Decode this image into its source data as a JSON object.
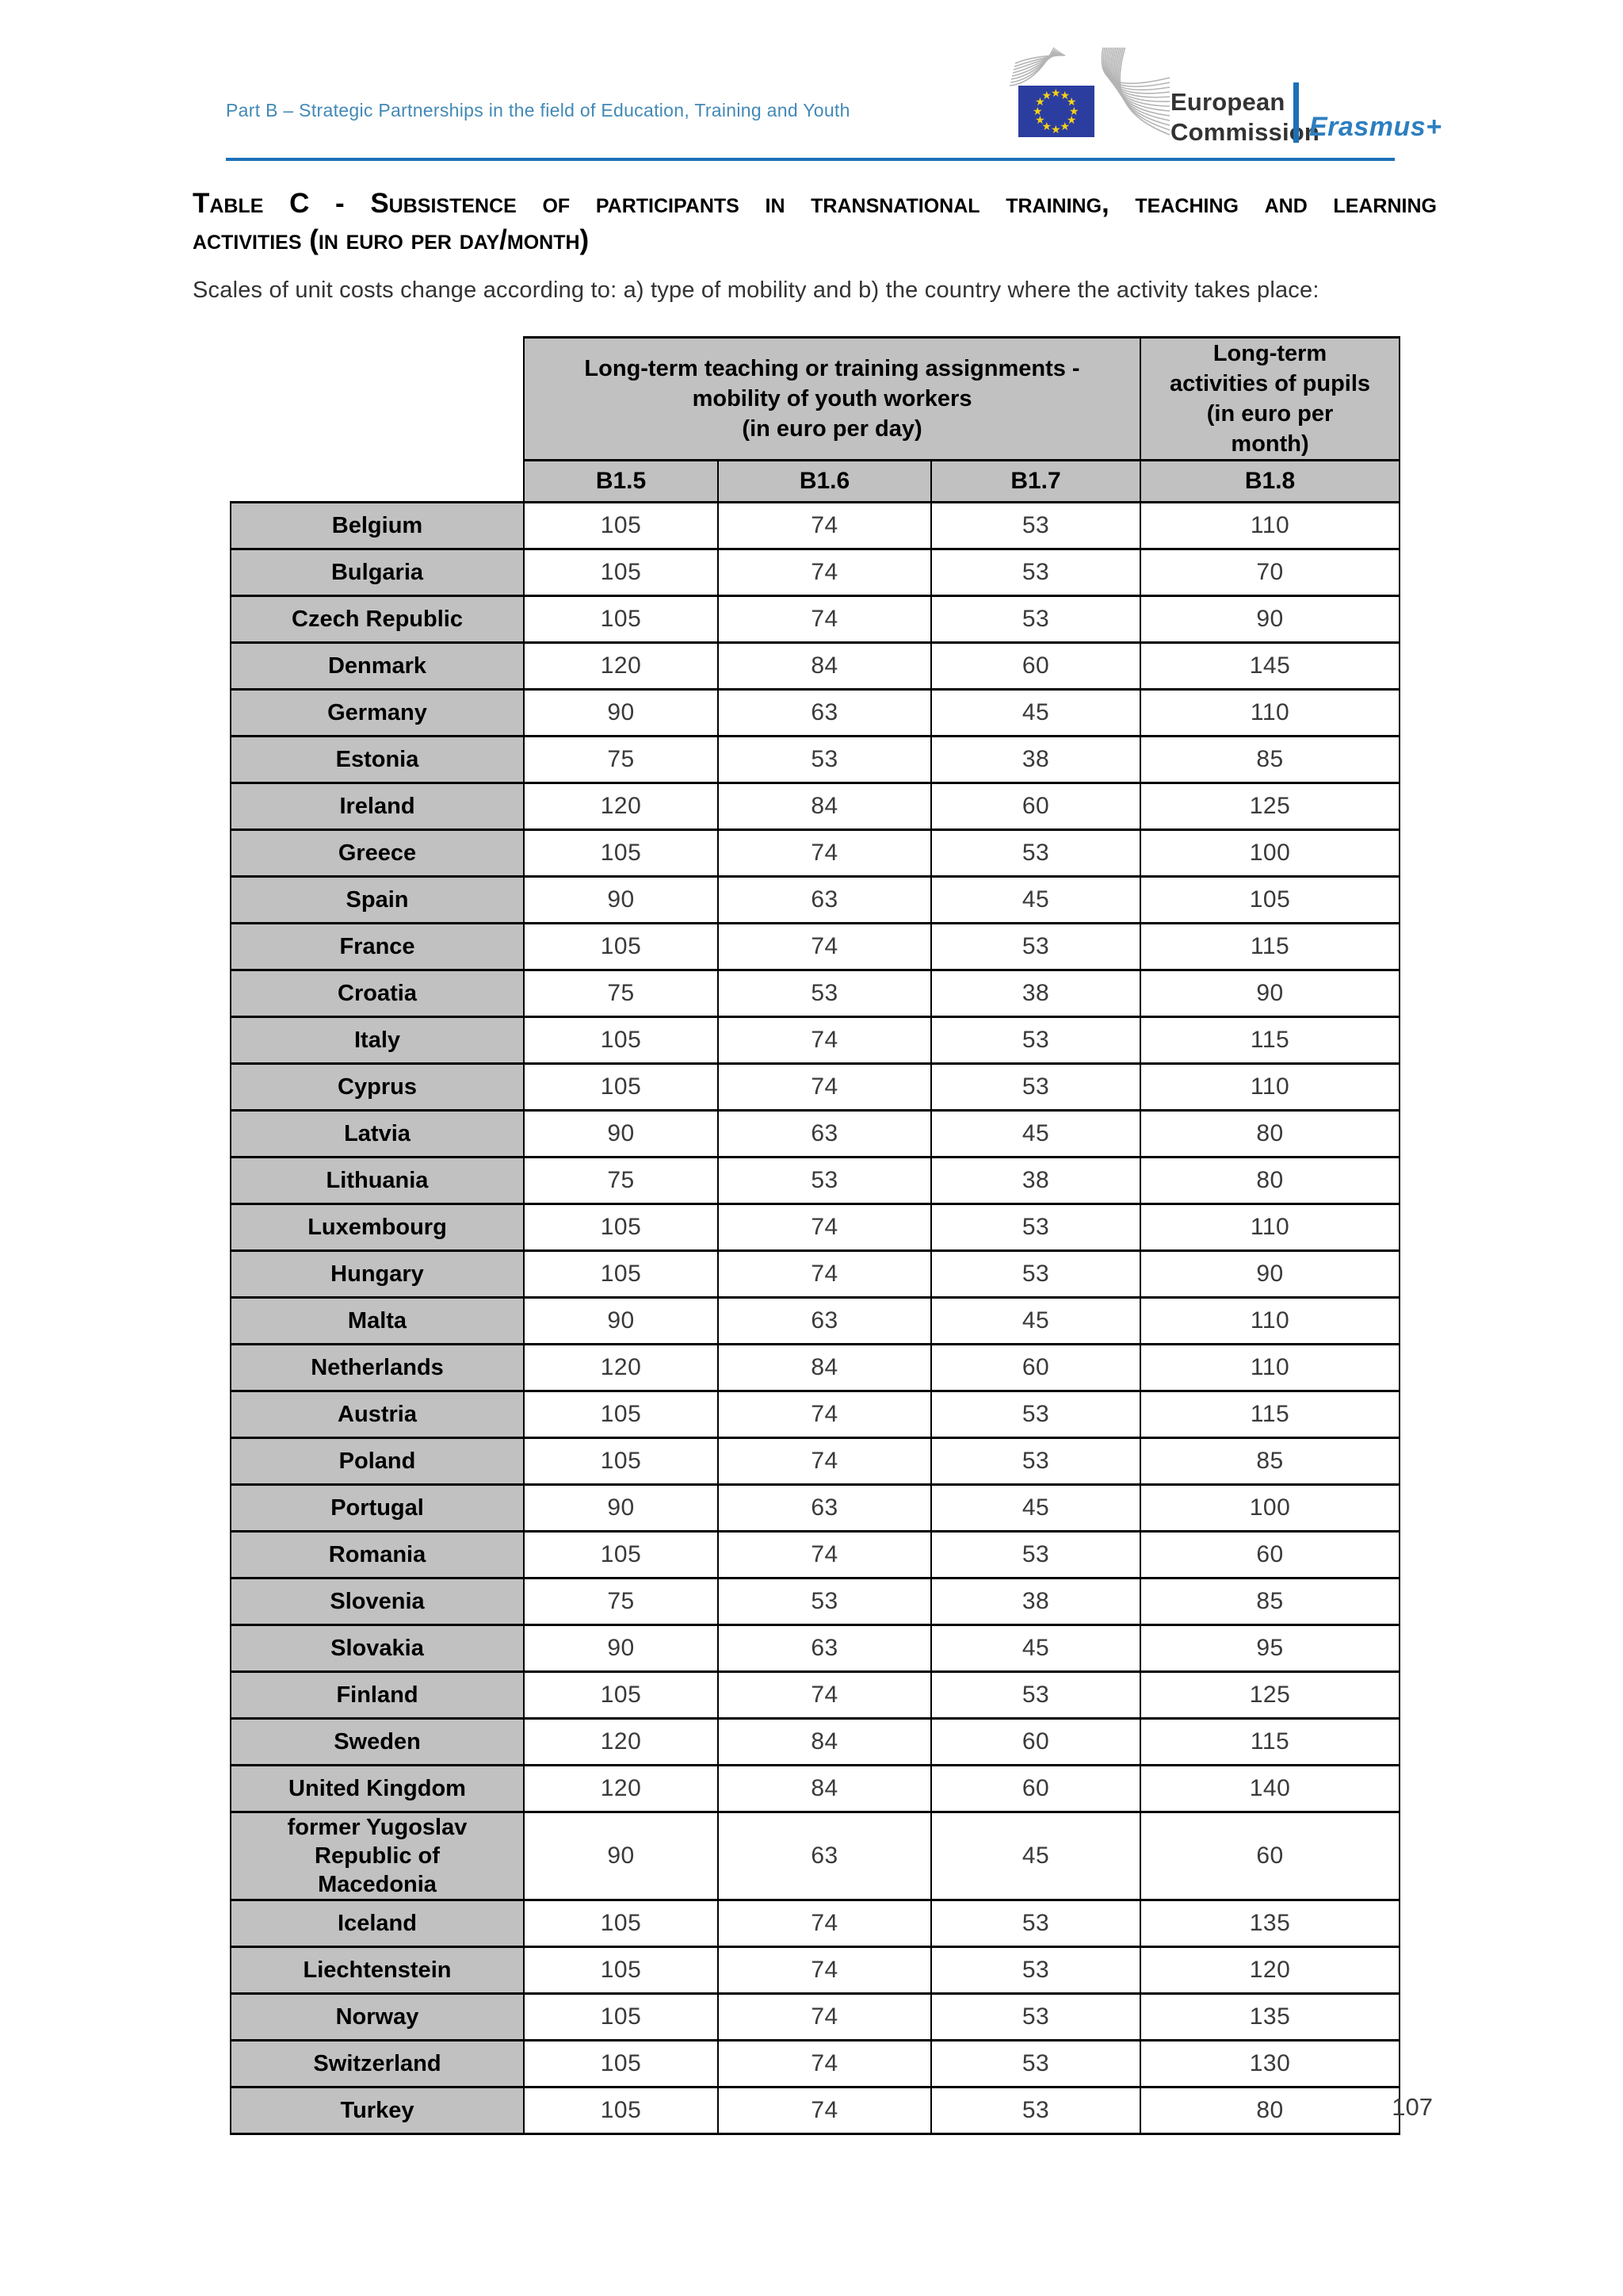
{
  "header": {
    "breadcrumb": "Part B – Strategic Partnerships in the field of Education, Training and Youth",
    "logo": {
      "org_line1": "European",
      "org_line2": "Commission",
      "program": "Erasmus+"
    }
  },
  "title": {
    "line1": "Table C - Subsistence of participants in transnational training, teaching and learning",
    "line2": "activities (in euro per day/month)"
  },
  "intro": "Scales of unit costs change according to: a) type of mobility and b) the country where the activity takes place:",
  "colors": {
    "accent_blue": "#1d70b7",
    "breadcrumb_blue": "#4289b6",
    "erasmus_blue": "#2d7fc0",
    "header_gray": "#c1c1c1",
    "eu_flag_blue": "#2b3e9f",
    "eu_star_yellow": "#f7d117"
  },
  "table": {
    "group_headers": {
      "mobility": [
        "Long-term teaching or training assignments -",
        "mobility of youth workers",
        "(in euro per day)"
      ],
      "pupils": [
        "Long-term",
        "activities of pupils",
        "(in euro per",
        "month)"
      ]
    },
    "column_headers": [
      "B1.5",
      "B1.6",
      "B1.7",
      "B1.8"
    ],
    "rows": [
      {
        "country": "Belgium",
        "values": [
          "105",
          "74",
          "53",
          "110"
        ]
      },
      {
        "country": "Bulgaria",
        "values": [
          "105",
          "74",
          "53",
          "70"
        ]
      },
      {
        "country": "Czech Republic",
        "values": [
          "105",
          "74",
          "53",
          "90"
        ]
      },
      {
        "country": "Denmark",
        "values": [
          "120",
          "84",
          "60",
          "145"
        ]
      },
      {
        "country": "Germany",
        "values": [
          "90",
          "63",
          "45",
          "110"
        ]
      },
      {
        "country": "Estonia",
        "values": [
          "75",
          "53",
          "38",
          "85"
        ]
      },
      {
        "country": "Ireland",
        "values": [
          "120",
          "84",
          "60",
          "125"
        ]
      },
      {
        "country": "Greece",
        "values": [
          "105",
          "74",
          "53",
          "100"
        ]
      },
      {
        "country": "Spain",
        "values": [
          "90",
          "63",
          "45",
          "105"
        ]
      },
      {
        "country": "France",
        "values": [
          "105",
          "74",
          "53",
          "115"
        ]
      },
      {
        "country": "Croatia",
        "values": [
          "75",
          "53",
          "38",
          "90"
        ]
      },
      {
        "country": "Italy",
        "values": [
          "105",
          "74",
          "53",
          "115"
        ]
      },
      {
        "country": "Cyprus",
        "values": [
          "105",
          "74",
          "53",
          "110"
        ]
      },
      {
        "country": "Latvia",
        "values": [
          "90",
          "63",
          "45",
          "80"
        ]
      },
      {
        "country": "Lithuania",
        "values": [
          "75",
          "53",
          "38",
          "80"
        ]
      },
      {
        "country": "Luxembourg",
        "values": [
          "105",
          "74",
          "53",
          "110"
        ]
      },
      {
        "country": "Hungary",
        "values": [
          "105",
          "74",
          "53",
          "90"
        ]
      },
      {
        "country": "Malta",
        "values": [
          "90",
          "63",
          "45",
          "110"
        ]
      },
      {
        "country": "Netherlands",
        "values": [
          "120",
          "84",
          "60",
          "110"
        ]
      },
      {
        "country": "Austria",
        "values": [
          "105",
          "74",
          "53",
          "115"
        ]
      },
      {
        "country": "Poland",
        "values": [
          "105",
          "74",
          "53",
          "85"
        ]
      },
      {
        "country": "Portugal",
        "values": [
          "90",
          "63",
          "45",
          "100"
        ]
      },
      {
        "country": "Romania",
        "values": [
          "105",
          "74",
          "53",
          "60"
        ]
      },
      {
        "country": "Slovenia",
        "values": [
          "75",
          "53",
          "38",
          "85"
        ]
      },
      {
        "country": "Slovakia",
        "values": [
          "90",
          "63",
          "45",
          "95"
        ]
      },
      {
        "country": "Finland",
        "values": [
          "105",
          "74",
          "53",
          "125"
        ]
      },
      {
        "country": "Sweden",
        "values": [
          "120",
          "84",
          "60",
          "115"
        ]
      },
      {
        "country": "United Kingdom",
        "values": [
          "120",
          "84",
          "60",
          "140"
        ]
      },
      {
        "country": "former Yugoslav Republic of Macedonia",
        "values": [
          "90",
          "63",
          "45",
          "60"
        ]
      },
      {
        "country": "Iceland",
        "values": [
          "105",
          "74",
          "53",
          "135"
        ]
      },
      {
        "country": "Liechtenstein",
        "values": [
          "105",
          "74",
          "53",
          "120"
        ]
      },
      {
        "country": "Norway",
        "values": [
          "105",
          "74",
          "53",
          "135"
        ]
      },
      {
        "country": "Switzerland",
        "values": [
          "105",
          "74",
          "53",
          "130"
        ]
      },
      {
        "country": "Turkey",
        "values": [
          "105",
          "74",
          "53",
          "80"
        ]
      }
    ]
  },
  "footer": {
    "page_number": "107"
  }
}
